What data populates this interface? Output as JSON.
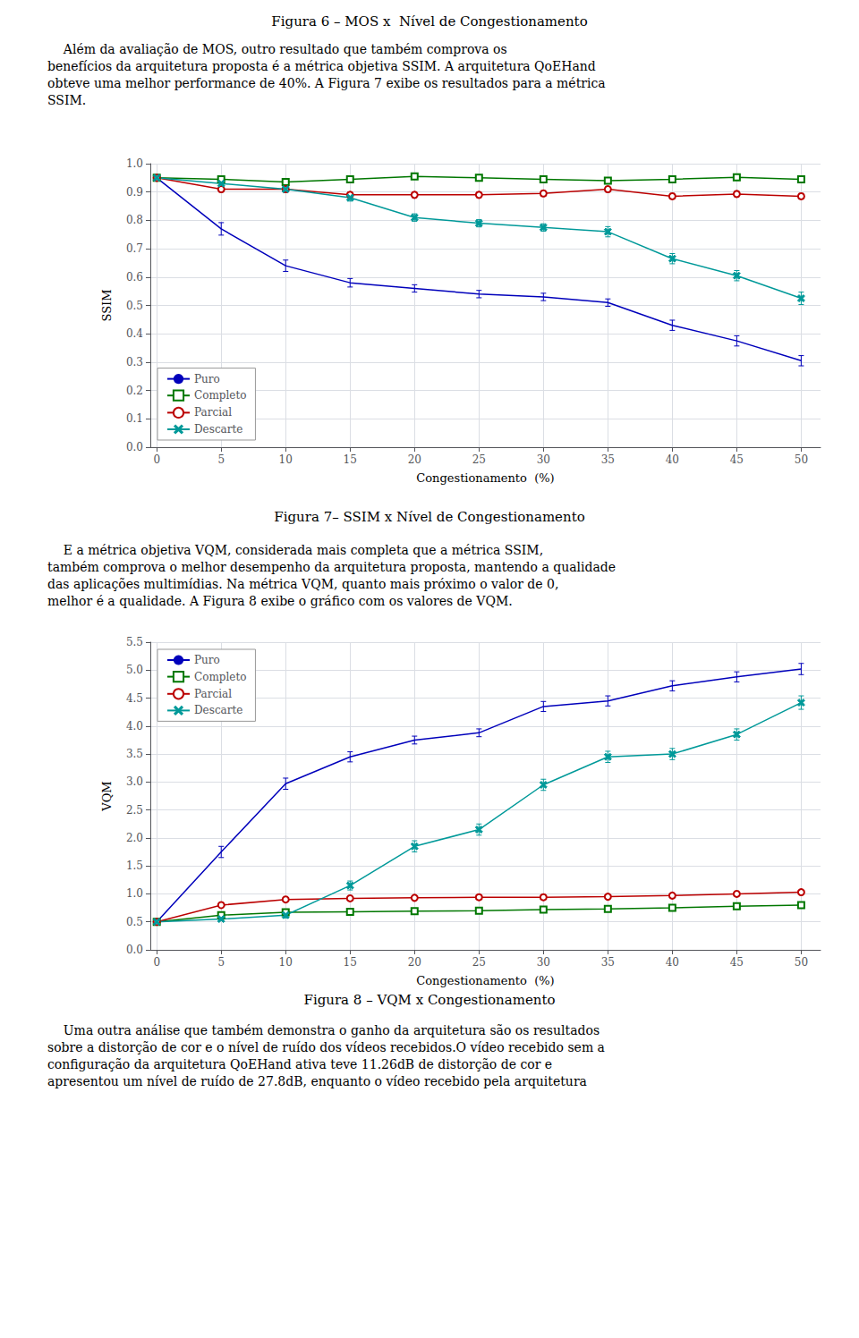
{
  "chart_data": [
    {
      "type": "line",
      "title": "Figura 7– SSIM x Nível de Congestionamento",
      "annotations": [
        [
          "Figura 6 – MOS x  Nível de Congestionamento"
        ],
        [
          "    Além da avaliação de MOS, outro resultado que também comprova os",
          "benefícios da arquitetura proposta é a métrica objetiva SSIM. A arquitetura QoEHand",
          "obteve uma melhor performance de 40%. A Figura 7 exibe os resultados para a métrica",
          "SSIM."
        ]
      ],
      "x_label": "Congestionamento  (%)",
      "y_label": "SSIM",
      "x": [
        0,
        5,
        10,
        15,
        20,
        25,
        30,
        35,
        40,
        45,
        50
      ],
      "series": [
        {
          "name": "Puro",
          "color": "#0000bb",
          "marker": "none",
          "values": [
            0.95,
            0.77,
            0.64,
            0.58,
            0.56,
            0.54,
            0.53,
            0.51,
            0.43,
            0.375,
            0.305
          ],
          "errors": [
            0.005,
            0.022,
            0.02,
            0.015,
            0.013,
            0.013,
            0.013,
            0.013,
            0.018,
            0.018,
            0.018
          ]
        },
        {
          "name": "Completo",
          "color": "#007700",
          "marker": "square",
          "values": [
            0.95,
            0.945,
            0.935,
            0.945,
            0.955,
            0.95,
            0.945,
            0.94,
            0.945,
            0.952,
            0.945
          ],
          "errors": [
            0.005,
            0.01,
            0.01,
            0.01,
            0.01,
            0.01,
            0.01,
            0.01,
            0.01,
            0.01,
            0.01
          ]
        },
        {
          "name": "Parcial",
          "color": "#bb0000",
          "marker": "circle",
          "values": [
            0.95,
            0.91,
            0.91,
            0.89,
            0.89,
            0.89,
            0.895,
            0.91,
            0.885,
            0.893,
            0.885
          ],
          "errors": [
            0.005,
            0.01,
            0.01,
            0.01,
            0.01,
            0.01,
            0.01,
            0.01,
            0.01,
            0.01,
            0.01
          ]
        },
        {
          "name": "Descarte",
          "color": "#009999",
          "marker": "x",
          "values": [
            0.95,
            0.93,
            0.91,
            0.88,
            0.81,
            0.79,
            0.775,
            0.76,
            0.665,
            0.605,
            0.525
          ],
          "errors": [
            0.005,
            0.01,
            0.01,
            0.012,
            0.013,
            0.013,
            0.013,
            0.018,
            0.018,
            0.018,
            0.022
          ]
        }
      ],
      "xlim": [
        -0.5,
        51.5
      ],
      "xticks": [
        0,
        5,
        10,
        15,
        20,
        25,
        30,
        35,
        40,
        45,
        50
      ],
      "ylim": [
        0,
        1.0
      ],
      "yticks": [
        {
          "value": 0,
          "label": "0.0"
        },
        0.1,
        0.2,
        0.3,
        0.4,
        0.5,
        0.6,
        0.7,
        0.8,
        0.9,
        {
          "value": 1.0,
          "label": "1.0"
        }
      ],
      "grid": true,
      "legend": "lower left"
    },
    {
      "type": "line",
      "title": "Figura 8 – VQM x Congestionamento",
      "annotations": [
        [
          "    E a métrica objetiva VQM, considerada mais completa que a métrica SSIM,",
          "também comprova o melhor desempenho da arquitetura proposta, mantendo a qualidade",
          "das aplicações multimídias. Na métrica VQM, quanto mais próximo o valor de 0,",
          "melhor é a qualidade. A Figura 8 exibe o gráfico com os valores de VQM."
        ],
        [
          "    Uma outra análise que também demonstra o ganho da arquitetura são os resultados",
          "sobre a distorção de cor e o nível de ruído dos vídeos recebidos.O vídeo recebido sem a",
          "configuração da arquitetura QoEHand ativa teve 11.26dB de distorção de cor e",
          "apresentou um nível de ruído de 27.8dB, enquanto o vídeo recebido pela arquitetura"
        ]
      ],
      "x_label": "Congestionamento  (%)",
      "y_label": "VQM",
      "x": [
        0,
        5,
        10,
        15,
        20,
        25,
        30,
        35,
        40,
        45,
        50
      ],
      "series": [
        {
          "name": "Puro",
          "color": "#0000bb",
          "marker": "none",
          "values": [
            0.5,
            1.75,
            2.97,
            3.45,
            3.75,
            3.88,
            4.35,
            4.45,
            4.72,
            4.88,
            5.02
          ],
          "errors": [
            0.01,
            0.1,
            0.1,
            0.09,
            0.07,
            0.07,
            0.09,
            0.09,
            0.09,
            0.09,
            0.1
          ]
        },
        {
          "name": "Completo",
          "color": "#007700",
          "marker": "square",
          "values": [
            0.5,
            0.62,
            0.67,
            0.68,
            0.69,
            0.7,
            0.72,
            0.73,
            0.75,
            0.78,
            0.8
          ],
          "errors": [
            0.01,
            0.02,
            0.02,
            0.02,
            0.02,
            0.02,
            0.02,
            0.02,
            0.02,
            0.02,
            0.02
          ]
        },
        {
          "name": "Parcial",
          "color": "#bb0000",
          "marker": "circle",
          "values": [
            0.5,
            0.8,
            0.9,
            0.92,
            0.93,
            0.94,
            0.94,
            0.95,
            0.97,
            1.0,
            1.03
          ],
          "errors": [
            0.01,
            0.02,
            0.02,
            0.02,
            0.02,
            0.02,
            0.02,
            0.02,
            0.02,
            0.02,
            0.02
          ]
        },
        {
          "name": "Descarte",
          "color": "#009999",
          "marker": "x",
          "values": [
            0.5,
            0.55,
            0.62,
            1.15,
            1.85,
            2.15,
            2.95,
            3.45,
            3.5,
            3.85,
            4.42
          ],
          "errors": [
            0.01,
            0.02,
            0.05,
            0.08,
            0.1,
            0.1,
            0.1,
            0.1,
            0.1,
            0.1,
            0.12
          ]
        }
      ],
      "xlim": [
        -0.5,
        51.5
      ],
      "xticks": [
        0,
        5,
        10,
        15,
        20,
        25,
        30,
        35,
        40,
        45,
        50
      ],
      "ylim": [
        0,
        5.5
      ],
      "yticks": [
        {
          "value": 0,
          "label": "0.0"
        },
        0.5,
        {
          "value": 1.0,
          "label": "1.0"
        },
        1.5,
        {
          "value": 2.0,
          "label": "2.0"
        },
        2.5,
        {
          "value": 3.0,
          "label": "3.0"
        },
        3.5,
        {
          "value": 4.0,
          "label": "4.0"
        },
        4.5,
        {
          "value": 5.0,
          "label": "5.0"
        },
        5.5
      ],
      "grid": true,
      "legend": "upper left"
    }
  ]
}
